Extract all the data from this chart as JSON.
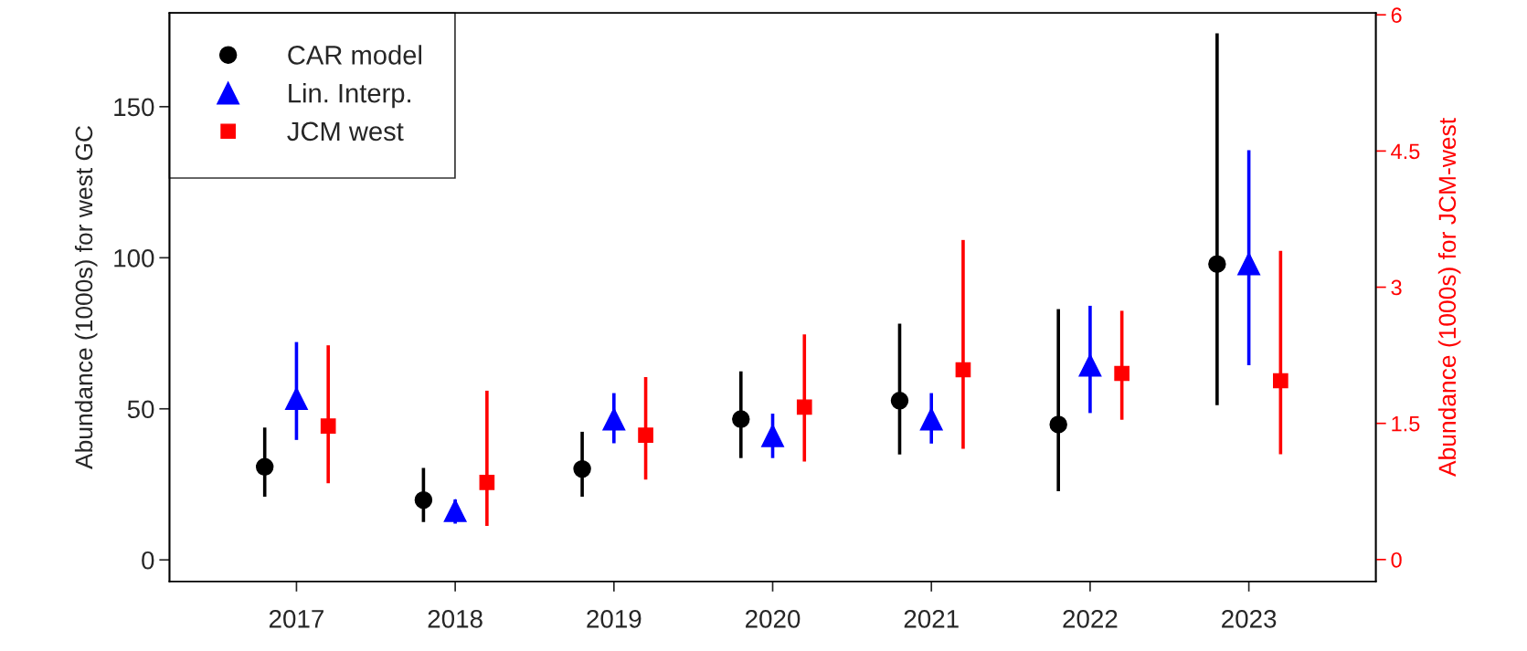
{
  "chart_data": {
    "type": "scatter",
    "categories": [
      "2017",
      "2018",
      "2019",
      "2020",
      "2021",
      "2022",
      "2023"
    ],
    "ylabel": "Abundance (1000s) for west GC",
    "y2label": "Abundance (1000s) for JCM-west",
    "ylim": [
      -7.1,
      181
    ],
    "yticks": [
      0,
      50,
      100,
      150
    ],
    "y2lim": [
      -0.24,
      6.02
    ],
    "y2ticks": [
      0,
      1.5,
      3,
      4.5,
      6
    ],
    "legend": "top left",
    "grid": false,
    "series": [
      {
        "name": "CAR model",
        "color": "#000000",
        "marker": "circle",
        "values": [
          30.8,
          19.8,
          30.1,
          46.6,
          52.7,
          44.8,
          97.9
        ],
        "errors": [
          [
            20.9,
            43.8
          ],
          [
            12.5,
            30.4
          ],
          [
            20.9,
            42.4
          ],
          [
            33.7,
            62.4
          ],
          [
            34.9,
            78.2
          ],
          [
            22.7,
            83
          ],
          [
            51.2,
            174.3
          ]
        ]
      },
      {
        "name": "Lin. Interp.",
        "color": "#0000ff",
        "marker": "triangle",
        "values": [
          53.4,
          16.3,
          46.6,
          41.1,
          46.6,
          64.4,
          98
        ],
        "errors": [
          [
            39.7,
            72.1
          ],
          [
            12,
            20
          ],
          [
            38.6,
            55.2
          ],
          [
            33.7,
            48.4
          ],
          [
            38.5,
            55.2
          ],
          [
            48.6,
            84.1
          ],
          [
            64.4,
            135.6
          ]
        ]
      },
      {
        "name": "JCM west",
        "color": "#ff0000",
        "marker": "square",
        "axis": "y2",
        "values": [
          1.47,
          0.85,
          1.37,
          1.68,
          2.09,
          2.05,
          1.97
        ],
        "errors": [
          [
            0.84,
            2.36
          ],
          [
            0.37,
            1.86
          ],
          [
            0.88,
            2.01
          ],
          [
            1.08,
            2.48
          ],
          [
            1.22,
            3.52
          ],
          [
            1.54,
            2.74
          ],
          [
            1.16,
            3.4
          ]
        ]
      }
    ]
  }
}
